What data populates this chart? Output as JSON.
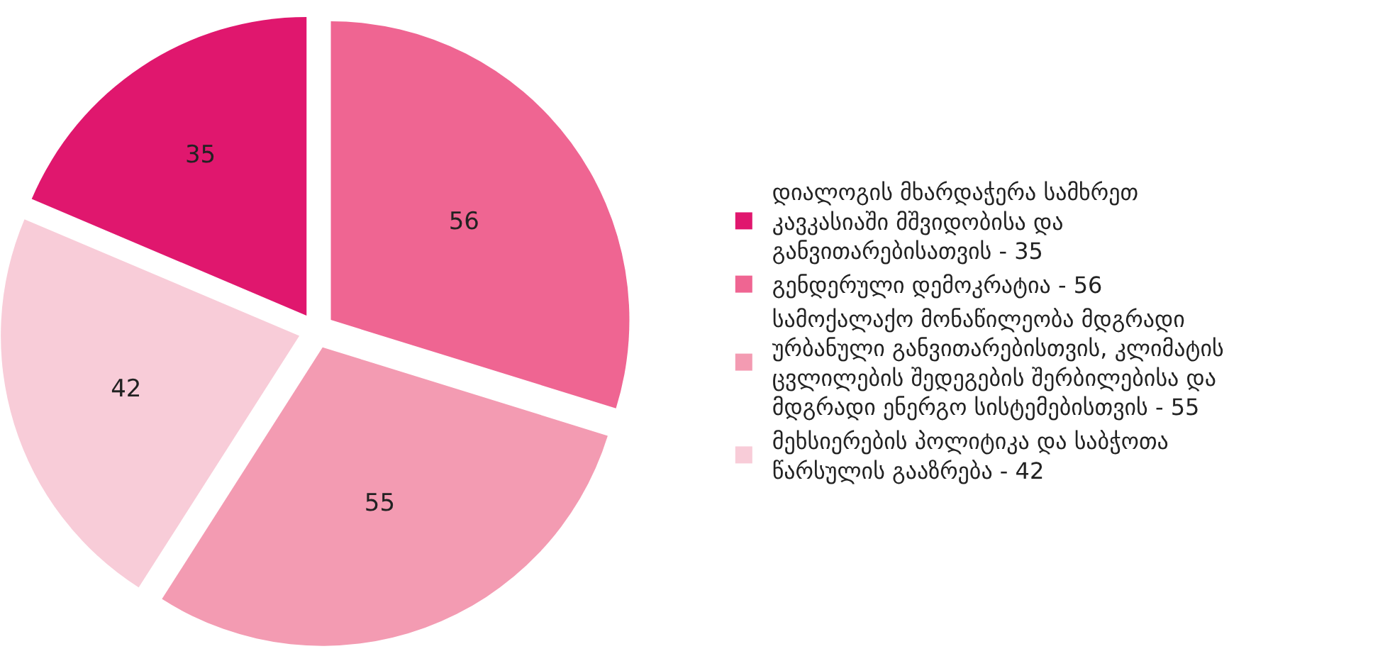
{
  "chart_data": {
    "type": "pie",
    "categories": [
      "დიალოგის მხარდაჭერა სამხრეთ კავკასიაში მშვიდობისა და განვითარებისათვის - 35",
      "გენდერული დემოკრატია - 56",
      "სამოქალაქო მონაწილეობა მდგრადი ურბანული განვითარებისთვის, კლიმატის ცვლილების შედეგების შერბილებისა და მდგრადი ენერგო სისტემებისთვის - 55",
      "მეხსიერების პოლიტიკა და საბჭოთა წარსულის გააზრება - 42"
    ],
    "values": [
      35,
      56,
      55,
      42
    ],
    "colors": [
      "#e0176e",
      "#ef6592",
      "#f39bb2",
      "#f8ccd8"
    ],
    "data_labels": true,
    "legend": "right"
  }
}
